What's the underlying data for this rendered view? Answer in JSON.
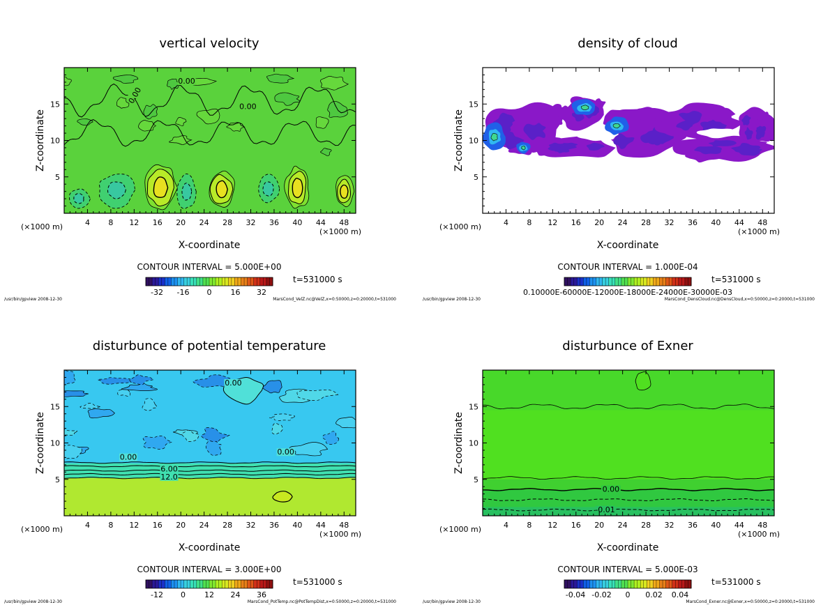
{
  "chart_data": [
    {
      "type": "heatmap",
      "title": "vertical velocity",
      "xlabel": "X-coordinate",
      "ylabel": "Z-coordinate",
      "x_unit": "(×1000 m)",
      "x_ticks": [
        "4",
        "8",
        "12",
        "16",
        "20",
        "24",
        "28",
        "32",
        "36",
        "40",
        "44",
        "48"
      ],
      "y_ticks": [
        "5",
        "10",
        "15"
      ],
      "xlim": [
        0,
        50
      ],
      "ylim": [
        0,
        20
      ],
      "contour_interval": "CONTOUR INTERVAL = 5.000E+00",
      "time": "t=531000 s",
      "colorbar_ticks": [
        "-32",
        "-16",
        "0",
        "16",
        "32"
      ],
      "contour_labels": [
        "0.00",
        "0.00",
        "0.00"
      ],
      "footer_left": "/usr/bin/gpview  2008-12-30",
      "footer_right": "MarsCond_VelZ.nc@VelZ,x=0:50000,z=0:20000,t=531000",
      "base_color": "#5ad23c",
      "features": [
        {
          "kind": "up",
          "x": 16.5,
          "z": 3.5,
          "rx": 2.2,
          "rz": 2.4
        },
        {
          "kind": "up",
          "x": 27,
          "z": 3.3,
          "rx": 1.8,
          "rz": 2.0
        },
        {
          "kind": "up",
          "x": 40,
          "z": 3.5,
          "rx": 1.6,
          "rz": 2.2
        },
        {
          "kind": "up",
          "x": 48,
          "z": 3.0,
          "rx": 1.2,
          "rz": 1.6
        },
        {
          "kind": "down",
          "x": 2.5,
          "z": 2.0,
          "rx": 1.8,
          "rz": 1.4
        },
        {
          "kind": "down",
          "x": 9.0,
          "z": 3.2,
          "rx": 3.0,
          "rz": 2.4
        },
        {
          "kind": "down",
          "x": 21,
          "z": 3.0,
          "rx": 1.6,
          "rz": 2.4
        },
        {
          "kind": "down",
          "x": 35,
          "z": 3.4,
          "rx": 1.8,
          "rz": 2.0
        }
      ]
    },
    {
      "type": "heatmap",
      "title": "density of cloud",
      "xlabel": "X-coordinate",
      "ylabel": "Z-coordinate",
      "x_unit": "(×1000 m)",
      "x_ticks": [
        "4",
        "8",
        "12",
        "16",
        "20",
        "24",
        "28",
        "32",
        "36",
        "40",
        "44",
        "48"
      ],
      "y_ticks": [
        "5",
        "10",
        "15"
      ],
      "xlim": [
        0,
        50
      ],
      "ylim": [
        0,
        20
      ],
      "contour_interval": "CONTOUR INTERVAL = 1.000E-04",
      "time": "t=531000 s",
      "colorbar_ticks": [
        "0.10000E-60000E-12000E-18000E-24000E-30000E-03"
      ],
      "footer_left": "/usr/bin/gpview  2008-12-30",
      "footer_right": "MarsCond_DensCloud.nc@DensCloud,x=0:50000,z=0:20000,t=531000",
      "base_color": "#ffffff",
      "features": [
        {
          "kind": "cloud",
          "x": 7,
          "z": 11.5,
          "rx": 7,
          "rz": 3.5
        },
        {
          "kind": "cloud",
          "x": 17,
          "z": 13.5,
          "rx": 4,
          "rz": 2.2
        },
        {
          "kind": "cloud",
          "x": 16,
          "z": 9.0,
          "rx": 6,
          "rz": 1.5
        },
        {
          "kind": "cloud",
          "x": 28,
          "z": 11.0,
          "rx": 7,
          "rz": 3.5
        },
        {
          "kind": "cloud",
          "x": 37,
          "z": 12.5,
          "rx": 7,
          "rz": 2.5
        },
        {
          "kind": "cloud",
          "x": 42,
          "z": 9.0,
          "rx": 8,
          "rz": 1.8
        },
        {
          "kind": "cloud",
          "x": 47,
          "z": 12.0,
          "rx": 3,
          "rz": 2.5
        },
        {
          "kind": "core",
          "x": 2,
          "z": 10.5,
          "rx": 1.6,
          "rz": 1.5
        },
        {
          "kind": "core",
          "x": 17.5,
          "z": 14.5,
          "rx": 1.8,
          "rz": 0.9
        },
        {
          "kind": "core",
          "x": 23,
          "z": 12.0,
          "rx": 1.6,
          "rz": 1.0
        },
        {
          "kind": "core",
          "x": 7,
          "z": 9.0,
          "rx": 1.0,
          "rz": 0.7
        }
      ]
    },
    {
      "type": "heatmap",
      "title": "disturbunce of potential temperature",
      "xlabel": "X-coordinate",
      "ylabel": "Z-coordinate",
      "x_unit": "(×1000 m)",
      "x_ticks": [
        "4",
        "8",
        "12",
        "16",
        "20",
        "24",
        "28",
        "32",
        "36",
        "40",
        "44",
        "48"
      ],
      "y_ticks": [
        "5",
        "10",
        "15"
      ],
      "xlim": [
        0,
        50
      ],
      "ylim": [
        0,
        20
      ],
      "contour_interval": "CONTOUR INTERVAL = 3.000E+00",
      "time": "t=531000 s",
      "colorbar_ticks": [
        "-12",
        "0",
        "12",
        "24",
        "36"
      ],
      "contour_labels": [
        "0.00",
        "0.00",
        "0.00",
        "6.00",
        "12.0"
      ],
      "footer_left": "/usr/bin/gpview  2008-12-30",
      "footer_right": "MarsCond_PotTemp.nc@PotTempDist,x=0:50000,z=0:20000,t=531000",
      "base_color": "#38c8f0"
    },
    {
      "type": "heatmap",
      "title": "disturbunce of Exner",
      "xlabel": "X-coordinate",
      "ylabel": "Z-coordinate",
      "x_unit": "(×1000 m)",
      "x_ticks": [
        "4",
        "8",
        "12",
        "16",
        "20",
        "24",
        "28",
        "32",
        "36",
        "40",
        "44",
        "48"
      ],
      "y_ticks": [
        "5",
        "10",
        "15"
      ],
      "xlim": [
        0,
        50
      ],
      "ylim": [
        0,
        20
      ],
      "contour_interval": "CONTOUR INTERVAL = 5.000E-03",
      "time": "t=531000 s",
      "colorbar_ticks": [
        "-0.04",
        "-0.02",
        "0",
        "0.02",
        "0.04"
      ],
      "contour_labels": [
        "0.00",
        "-0.01"
      ],
      "footer_left": "/usr/bin/gpview  2008-12-30",
      "footer_right": "MarsCond_Exner.nc@Exner,x=0:50000,z=0:20000,t=531000",
      "base_color": "#50e020"
    }
  ]
}
